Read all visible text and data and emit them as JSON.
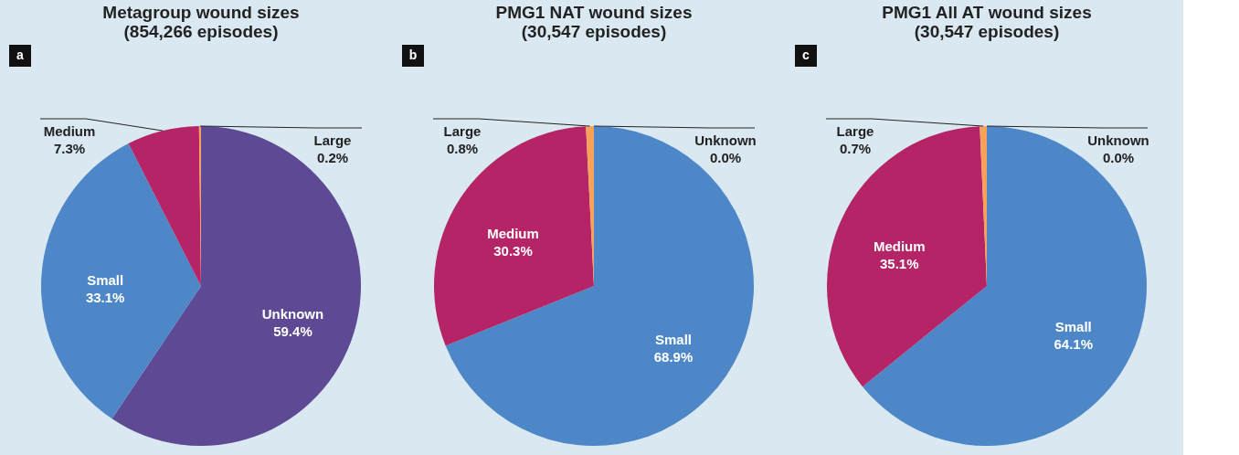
{
  "chart_data": [
    {
      "type": "pie",
      "title": "Metagroup wound sizes\n(854,266 episodes)",
      "annotations": [
        "a"
      ],
      "categories": [
        "Unknown",
        "Small",
        "Medium",
        "Large"
      ],
      "values": [
        59.4,
        33.1,
        7.3,
        0.2
      ],
      "value_labels": [
        "59.4%",
        "33.1%",
        "7.3%",
        "0.2%"
      ],
      "colors": [
        "#5e4a94",
        "#4d87c7",
        "#b52466",
        "#f7a25a"
      ]
    },
    {
      "type": "pie",
      "title": "PMG1 NAT wound sizes\n(30,547 episodes)",
      "annotations": [
        "b"
      ],
      "categories": [
        "Small",
        "Medium",
        "Large",
        "Unknown"
      ],
      "values": [
        68.9,
        30.3,
        0.8,
        0.0
      ],
      "value_labels": [
        "68.9%",
        "30.3%",
        "0.8%",
        "0.0%"
      ],
      "colors": [
        "#4d87c7",
        "#b52466",
        "#f7a25a",
        "#5e4a94"
      ]
    },
    {
      "type": "pie",
      "title": "PMG1 All AT wound sizes\n(30,547 episodes)",
      "annotations": [
        "c"
      ],
      "categories": [
        "Small",
        "Medium",
        "Large",
        "Unknown"
      ],
      "values": [
        64.1,
        35.1,
        0.7,
        0.0
      ],
      "value_labels": [
        "64.1%",
        "35.1%",
        "0.7%",
        "0.0%"
      ],
      "colors": [
        "#4d87c7",
        "#b52466",
        "#f7a25a",
        "#5e4a94"
      ]
    }
  ]
}
